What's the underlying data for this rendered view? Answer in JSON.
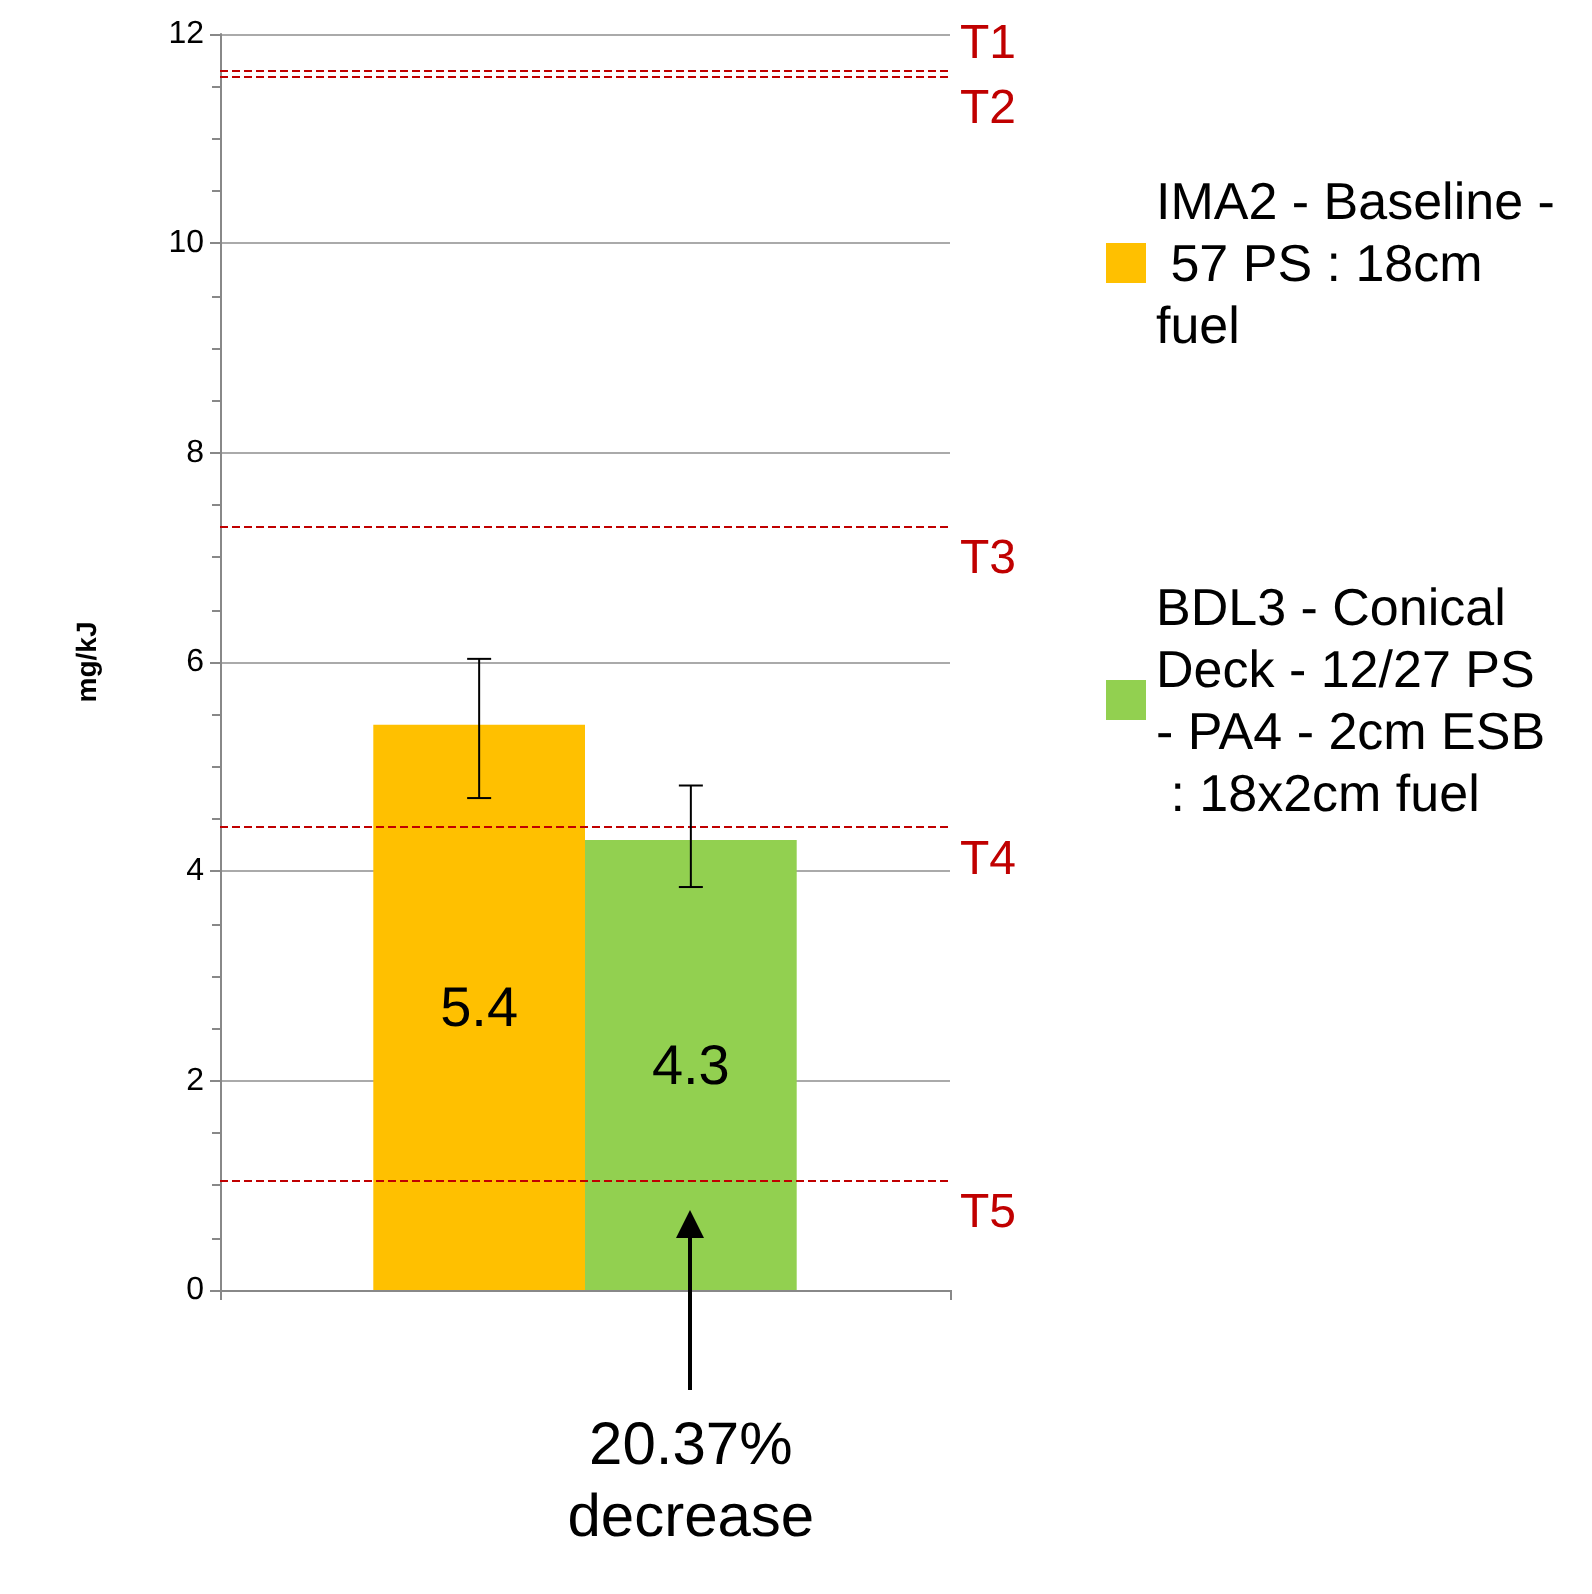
{
  "chart_data": {
    "type": "bar",
    "ylabel": "mg/kJ",
    "categories": [
      null
    ],
    "series": [
      {
        "name": "IMA2 - Baseline - 57 PS : 18cm fuel",
        "color": "#ffc000",
        "values": [
          5.4
        ],
        "errors": [
          [
            4.7,
            6.03
          ]
        ]
      },
      {
        "name": "BDL3 - Conical Deck - 12/27 PS - PA4 - 2cm ESB : 18x2cm fuel",
        "color": "#92d050",
        "values": [
          4.3
        ],
        "errors": [
          [
            3.85,
            4.82
          ]
        ]
      }
    ],
    "ylim": [
      0,
      12
    ],
    "yticks": [
      0,
      2,
      4,
      6,
      8,
      10,
      12
    ],
    "grid": "y",
    "legend": "right",
    "data_labels": true,
    "ref_lines": [
      {
        "axis": "y",
        "value": 11.65,
        "label": "T1",
        "color": "#c00000",
        "line_style": "dashed"
      },
      {
        "axis": "y",
        "value": 11.6,
        "label": "T2",
        "color": "#c00000",
        "line_style": "dashed"
      },
      {
        "axis": "y",
        "value": 7.3,
        "label": "T3",
        "color": "#c00000",
        "line_style": "dashed"
      },
      {
        "axis": "y",
        "value": 4.42,
        "label": "T4",
        "color": "#c00000",
        "line_style": "dashed"
      },
      {
        "axis": "y",
        "value": 1.05,
        "label": "T5",
        "color": "#c00000",
        "line_style": "dashed"
      }
    ],
    "annotations": [
      "20.37% decrease"
    ]
  }
}
